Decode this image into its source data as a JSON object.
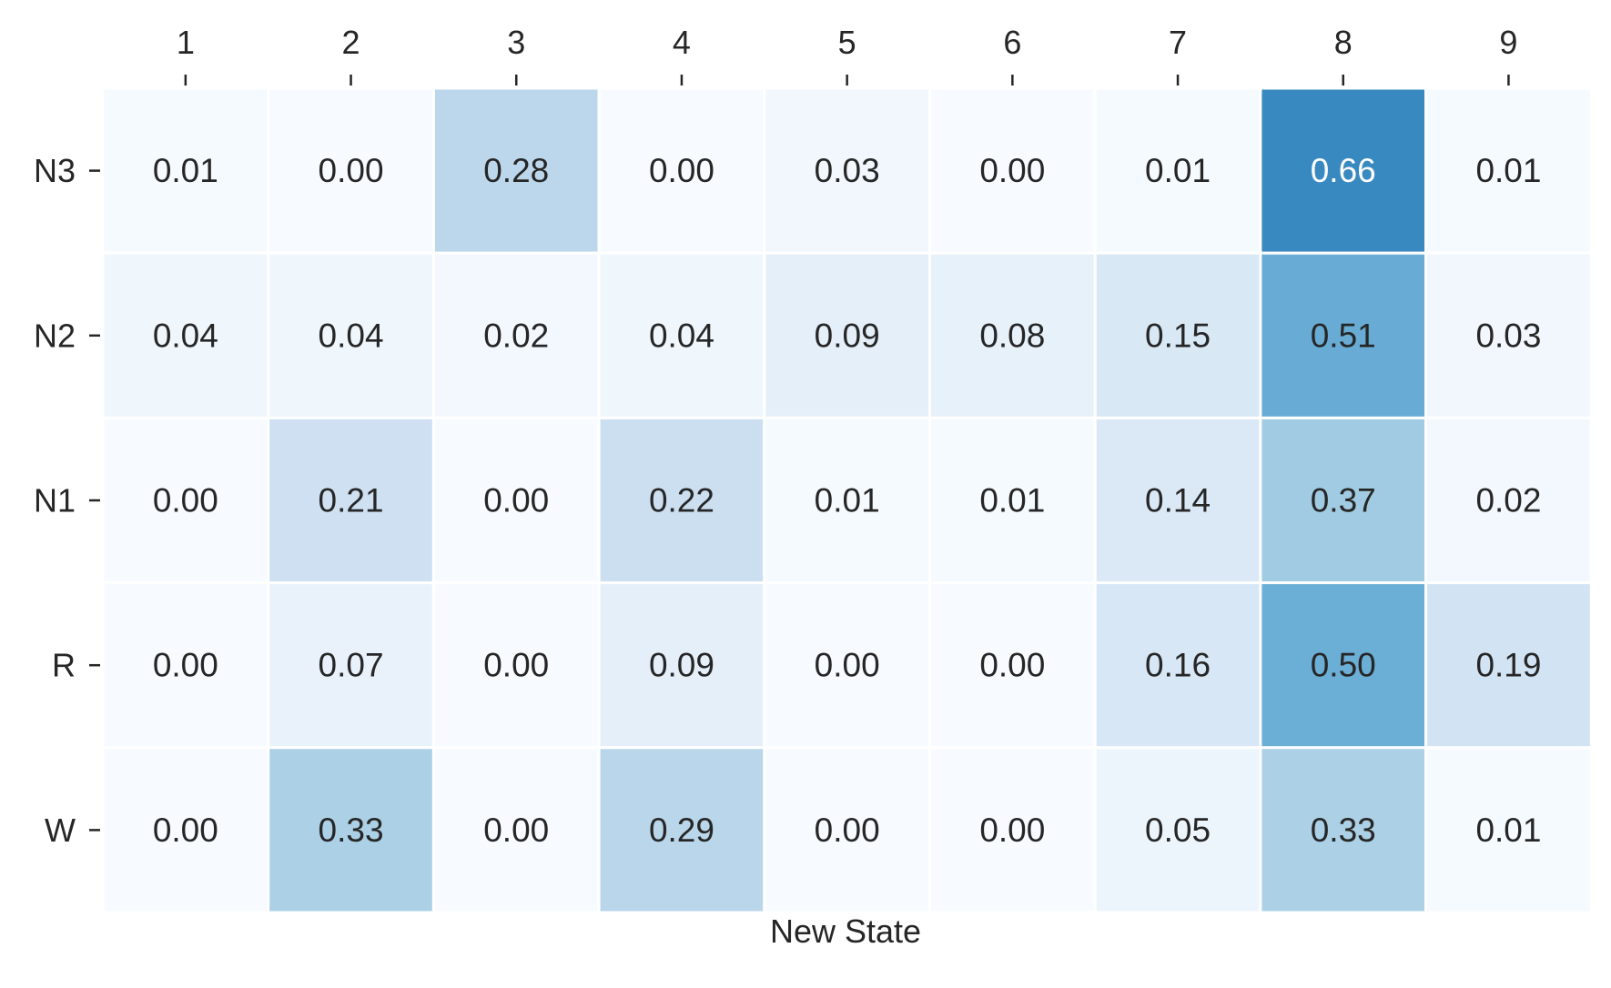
{
  "chart_data": {
    "type": "heatmap",
    "xlabel": "New State",
    "ylabel": "",
    "x_categories": [
      "1",
      "2",
      "3",
      "4",
      "5",
      "6",
      "7",
      "8",
      "9"
    ],
    "y_categories": [
      "N3",
      "N2",
      "N1",
      "R",
      "W"
    ],
    "values": [
      [
        0.01,
        0.0,
        0.28,
        0.0,
        0.03,
        0.0,
        0.01,
        0.66,
        0.01
      ],
      [
        0.04,
        0.04,
        0.02,
        0.04,
        0.09,
        0.08,
        0.15,
        0.51,
        0.03
      ],
      [
        0.0,
        0.21,
        0.0,
        0.22,
        0.01,
        0.01,
        0.14,
        0.37,
        0.02
      ],
      [
        0.0,
        0.07,
        0.0,
        0.09,
        0.0,
        0.0,
        0.16,
        0.5,
        0.19
      ],
      [
        0.0,
        0.33,
        0.0,
        0.29,
        0.0,
        0.0,
        0.05,
        0.33,
        0.01
      ]
    ],
    "value_format": "0.00",
    "x_axis_position": "top",
    "colorscale": "Blues",
    "color_range": [
      0,
      1
    ],
    "colorbar": false,
    "grid": false
  }
}
